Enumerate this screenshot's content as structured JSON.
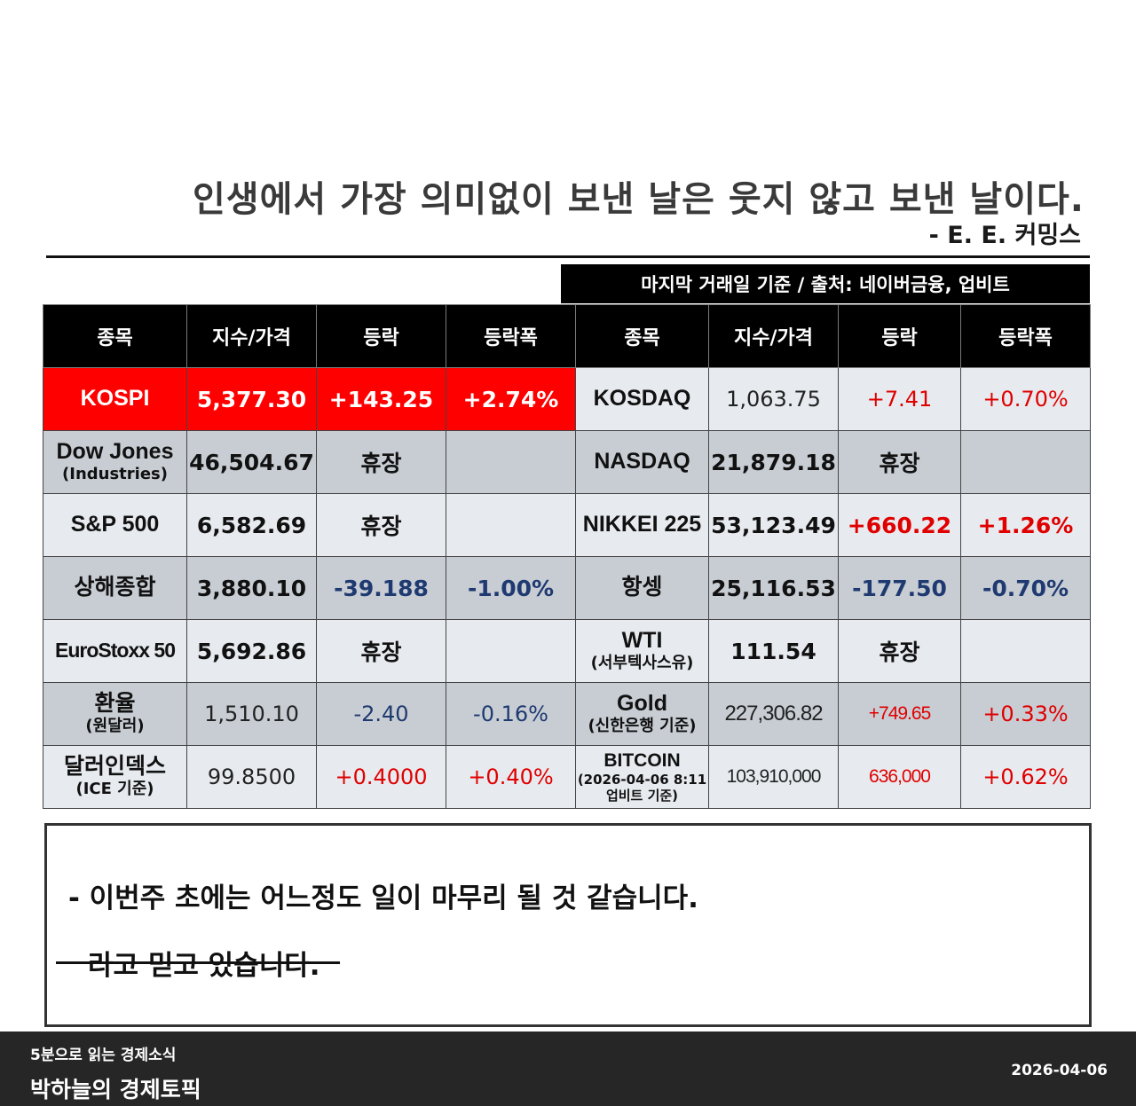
{
  "quote": {
    "text": "인생에서 가장 의미없이 보낸 날은 웃지 않고 보낸 날이다.",
    "author": "- E. E. 커밍스"
  },
  "source_note": "마지막 거래일 기준 / 출처: 네이버금융, 업비트",
  "table": {
    "headers": [
      "종목",
      "지수/가격",
      "등락",
      "등락폭",
      "종목",
      "지수/가격",
      "등락",
      "등락폭"
    ],
    "rows": [
      {
        "left": {
          "name": "KOSPI",
          "sub": "",
          "price": "5,377.30",
          "change": "+143.25",
          "pct": "+2.74%"
        },
        "right": {
          "name": "KOSDAQ",
          "sub": "",
          "price": "1,063.75",
          "change": "+7.41",
          "pct": "+0.70%"
        }
      },
      {
        "left": {
          "name": "Dow Jones",
          "sub": "(Industries)",
          "price": "46,504.67",
          "change": "휴장",
          "pct": ""
        },
        "right": {
          "name": "NASDAQ",
          "sub": "",
          "price": "21,879.18",
          "change": "휴장",
          "pct": ""
        }
      },
      {
        "left": {
          "name": "S&P 500",
          "sub": "",
          "price": "6,582.69",
          "change": "휴장",
          "pct": ""
        },
        "right": {
          "name": "NIKKEI 225",
          "sub": "",
          "price": "53,123.49",
          "change": "+660.22",
          "pct": "+1.26%"
        }
      },
      {
        "left": {
          "name": "상해종합",
          "sub": "",
          "price": "3,880.10",
          "change": "-39.188",
          "pct": "-1.00%"
        },
        "right": {
          "name": "항셍",
          "sub": "",
          "price": "25,116.53",
          "change": "-177.50",
          "pct": "-0.70%"
        }
      },
      {
        "left": {
          "name": "EuroStoxx 50",
          "sub": "",
          "price": "5,692.86",
          "change": "휴장",
          "pct": ""
        },
        "right": {
          "name": "WTI",
          "sub": "(서부텍사스유)",
          "price": "111.54",
          "change": "휴장",
          "pct": ""
        }
      },
      {
        "left": {
          "name": "환율",
          "sub": "(원달러)",
          "price": "1,510.10",
          "change": "-2.40",
          "pct": "-0.16%"
        },
        "right": {
          "name": "Gold",
          "sub": "(신한은행 기준)",
          "price": "227,306.82",
          "change": "+749.65",
          "pct": "+0.33%"
        }
      },
      {
        "left": {
          "name": "달러인덱스",
          "sub": "(ICE 기준)",
          "price": "99.8500",
          "change": "+0.4000",
          "pct": "+0.40%"
        },
        "right": {
          "name": "BITCOIN",
          "sub": "(2026-04-06 8:11",
          "sub2": "업비트 기준)",
          "price": "103,910,000",
          "change": "636,000",
          "pct": "+0.62%"
        }
      }
    ]
  },
  "note": {
    "line1": "- 이번주 초에는 어느정도 일이 마무리 될 것 같습니다.",
    "line2": "라고 믿고 있습니다."
  },
  "footer": {
    "subtitle": "5분으로 읽는 경제소식",
    "title": "박하늘의 경제토픽",
    "date": "2026-04-06"
  },
  "colors": {
    "up": "#e00000",
    "down": "#1f3a70",
    "highlight": "#ff0000",
    "header_bg": "#000000",
    "row_light": "#e7ebef",
    "row_dark": "#c8cdd4"
  }
}
